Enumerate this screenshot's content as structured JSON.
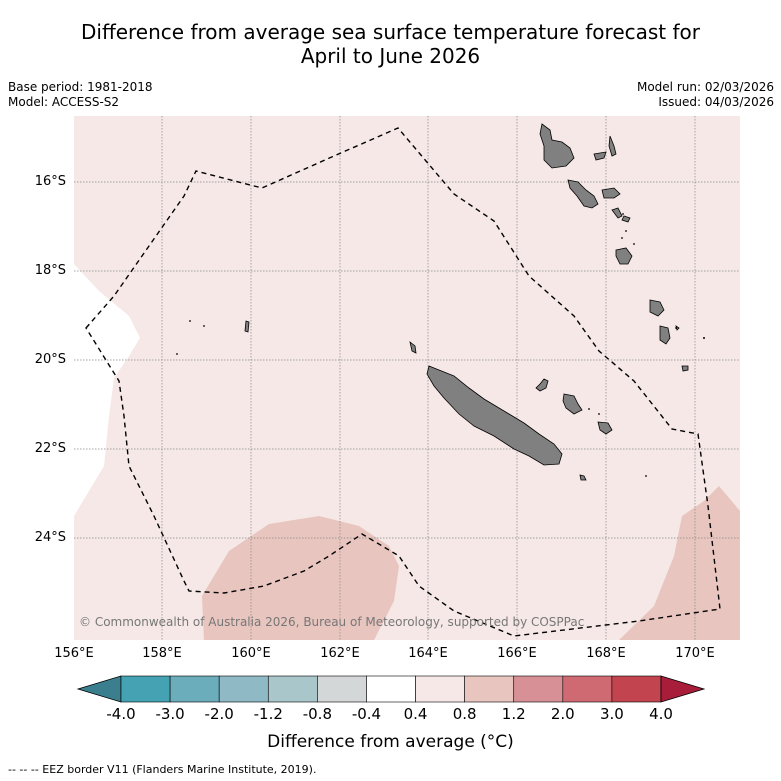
{
  "title_line1": "Difference from average sea surface temperature forecast for",
  "title_line2": "April to June 2026",
  "base_period": "Base period: 1981-2018",
  "model": "Model: ACCESS-S2",
  "model_run": "Model run: 02/03/2026",
  "issued": "Issued: 04/03/2026",
  "lat_labels": [
    "16°S",
    "18°S",
    "20°S",
    "22°S",
    "24°S"
  ],
  "lon_labels": [
    "156°E",
    "158°E",
    "160°E",
    "162°E",
    "164°E",
    "166°E",
    "168°E",
    "170°E"
  ],
  "copyright": "© Commonwealth of Australia 2026, Bureau of Meteorology, supported by COSPPac",
  "colorbar": {
    "ticks": [
      "-4.0",
      "-3.0",
      "-2.0",
      "-1.2",
      "-0.8",
      "-0.4",
      "0.4",
      "0.8",
      "1.2",
      "2.0",
      "3.0",
      "4.0"
    ],
    "colors": [
      "#3b7f8e",
      "#45a2b2",
      "#6badbb",
      "#8fb9c4",
      "#a9c6cb",
      "#d3d7d8",
      "#ffffff",
      "#f5e8e6",
      "#e8c5bf",
      "#d89097",
      "#cf6a73",
      "#c1444f",
      "#a81d3a"
    ],
    "label": "Difference from average (°C)"
  },
  "footnote": "--  --  -- EEZ border V11 (Flanders Marine Institute, 2019).",
  "colors": {
    "ocean_light_warm": "#f5e8e6",
    "ocean_warm": "#e8c5bf",
    "land": "#808080",
    "neutral": "#ffffff"
  }
}
